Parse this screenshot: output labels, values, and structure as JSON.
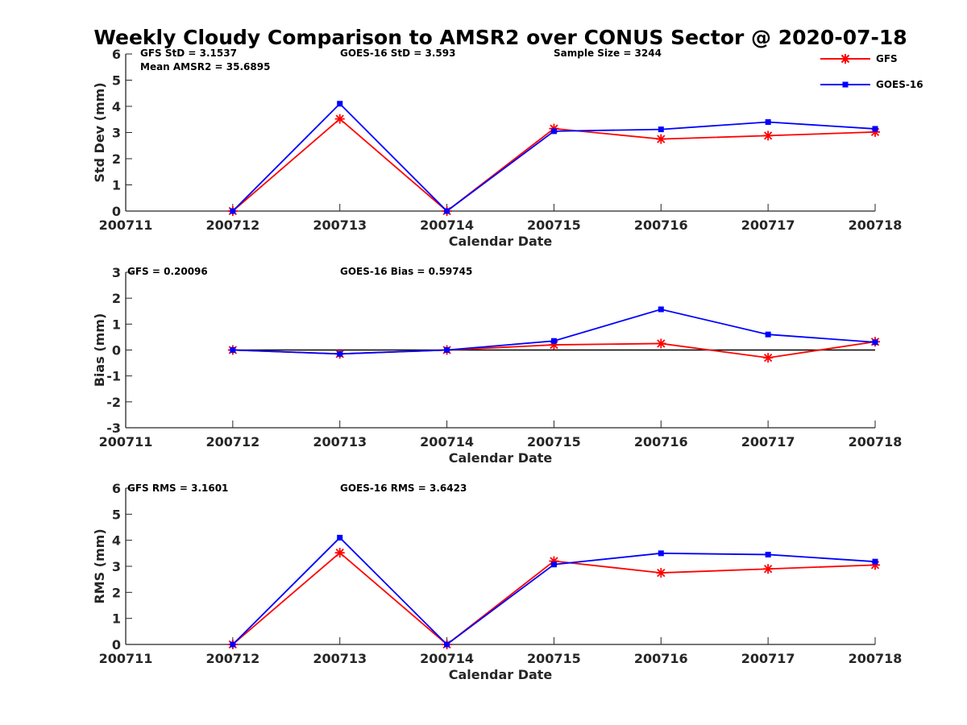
{
  "chart_data": {
    "title": "Weekly Cloudy Comparison to AMSR2 over CONUS Sector @ 2020-07-18",
    "legend": {
      "placement": "top-right",
      "entries": [
        {
          "name": "GFS",
          "color": "#ff0000",
          "marker": "asterisk"
        },
        {
          "name": "GOES-16",
          "color": "#0000ff",
          "marker": "square"
        }
      ]
    },
    "panels": [
      {
        "type": "line",
        "xlabel": "Calendar Date",
        "ylabel": "Std Dev (mm)",
        "x_ticks": [
          "200711",
          "200712",
          "200713",
          "200714",
          "200715",
          "200716",
          "200717",
          "200718"
        ],
        "ylim": [
          0,
          6
        ],
        "y_ticks": [
          "0",
          "1",
          "2",
          "3",
          "4",
          "5",
          "6"
        ],
        "zero_line": false,
        "annotations": {
          "gfs": "GFS StD = 3.1537",
          "mean_amsr2": "Mean AMSR2 = 35.6895",
          "goes": "GOES-16 StD = 3.593",
          "sample": "Sample Size = 3244"
        },
        "series": [
          {
            "name": "GFS",
            "color": "#ff0000",
            "x": [
              1,
              2,
              3,
              4,
              5,
              6,
              7
            ],
            "values": [
              0.0,
              3.52,
              0.0,
              3.15,
              2.75,
              2.88,
              3.02
            ]
          },
          {
            "name": "GOES-16",
            "color": "#0000ff",
            "x": [
              1,
              2,
              3,
              4,
              5,
              6,
              7
            ],
            "values": [
              0.0,
              4.1,
              0.0,
              3.05,
              3.12,
              3.4,
              3.14
            ]
          }
        ]
      },
      {
        "type": "line",
        "xlabel": "Calendar Date",
        "ylabel": "Bias (mm)",
        "x_ticks": [
          "200711",
          "200712",
          "200713",
          "200714",
          "200715",
          "200716",
          "200717",
          "200718"
        ],
        "ylim": [
          -3,
          3
        ],
        "y_ticks": [
          "-3",
          "-2",
          "-1",
          "0",
          "1",
          "2",
          "3"
        ],
        "zero_line": true,
        "annotations": {
          "gfs": "GFS = 0.20096",
          "goes": "GOES-16 Bias  = 0.59745"
        },
        "series": [
          {
            "name": "GFS",
            "color": "#ff0000",
            "x": [
              1,
              2,
              3,
              4,
              5,
              6,
              7
            ],
            "values": [
              0.0,
              -0.15,
              0.0,
              0.2,
              0.25,
              -0.3,
              0.32
            ]
          },
          {
            "name": "GOES-16",
            "color": "#0000ff",
            "x": [
              1,
              2,
              3,
              4,
              5,
              6,
              7
            ],
            "values": [
              0.0,
              -0.15,
              0.0,
              0.35,
              1.57,
              0.6,
              0.3
            ]
          }
        ]
      },
      {
        "type": "line",
        "xlabel": "Calendar Date",
        "ylabel": "RMS (mm)",
        "x_ticks": [
          "200711",
          "200712",
          "200713",
          "200714",
          "200715",
          "200716",
          "200717",
          "200718"
        ],
        "ylim": [
          0,
          6
        ],
        "y_ticks": [
          "0",
          "1",
          "2",
          "3",
          "4",
          "5",
          "6"
        ],
        "zero_line": false,
        "annotations": {
          "gfs": "GFS RMS = 3.1601",
          "goes": "GOES-16 RMS = 3.6423"
        },
        "series": [
          {
            "name": "GFS",
            "color": "#ff0000",
            "x": [
              1,
              2,
              3,
              4,
              5,
              6,
              7
            ],
            "values": [
              0.0,
              3.52,
              0.0,
              3.2,
              2.75,
              2.9,
              3.05
            ]
          },
          {
            "name": "GOES-16",
            "color": "#0000ff",
            "x": [
              1,
              2,
              3,
              4,
              5,
              6,
              7
            ],
            "values": [
              0.0,
              4.1,
              0.0,
              3.07,
              3.5,
              3.45,
              3.18
            ]
          }
        ]
      }
    ]
  }
}
